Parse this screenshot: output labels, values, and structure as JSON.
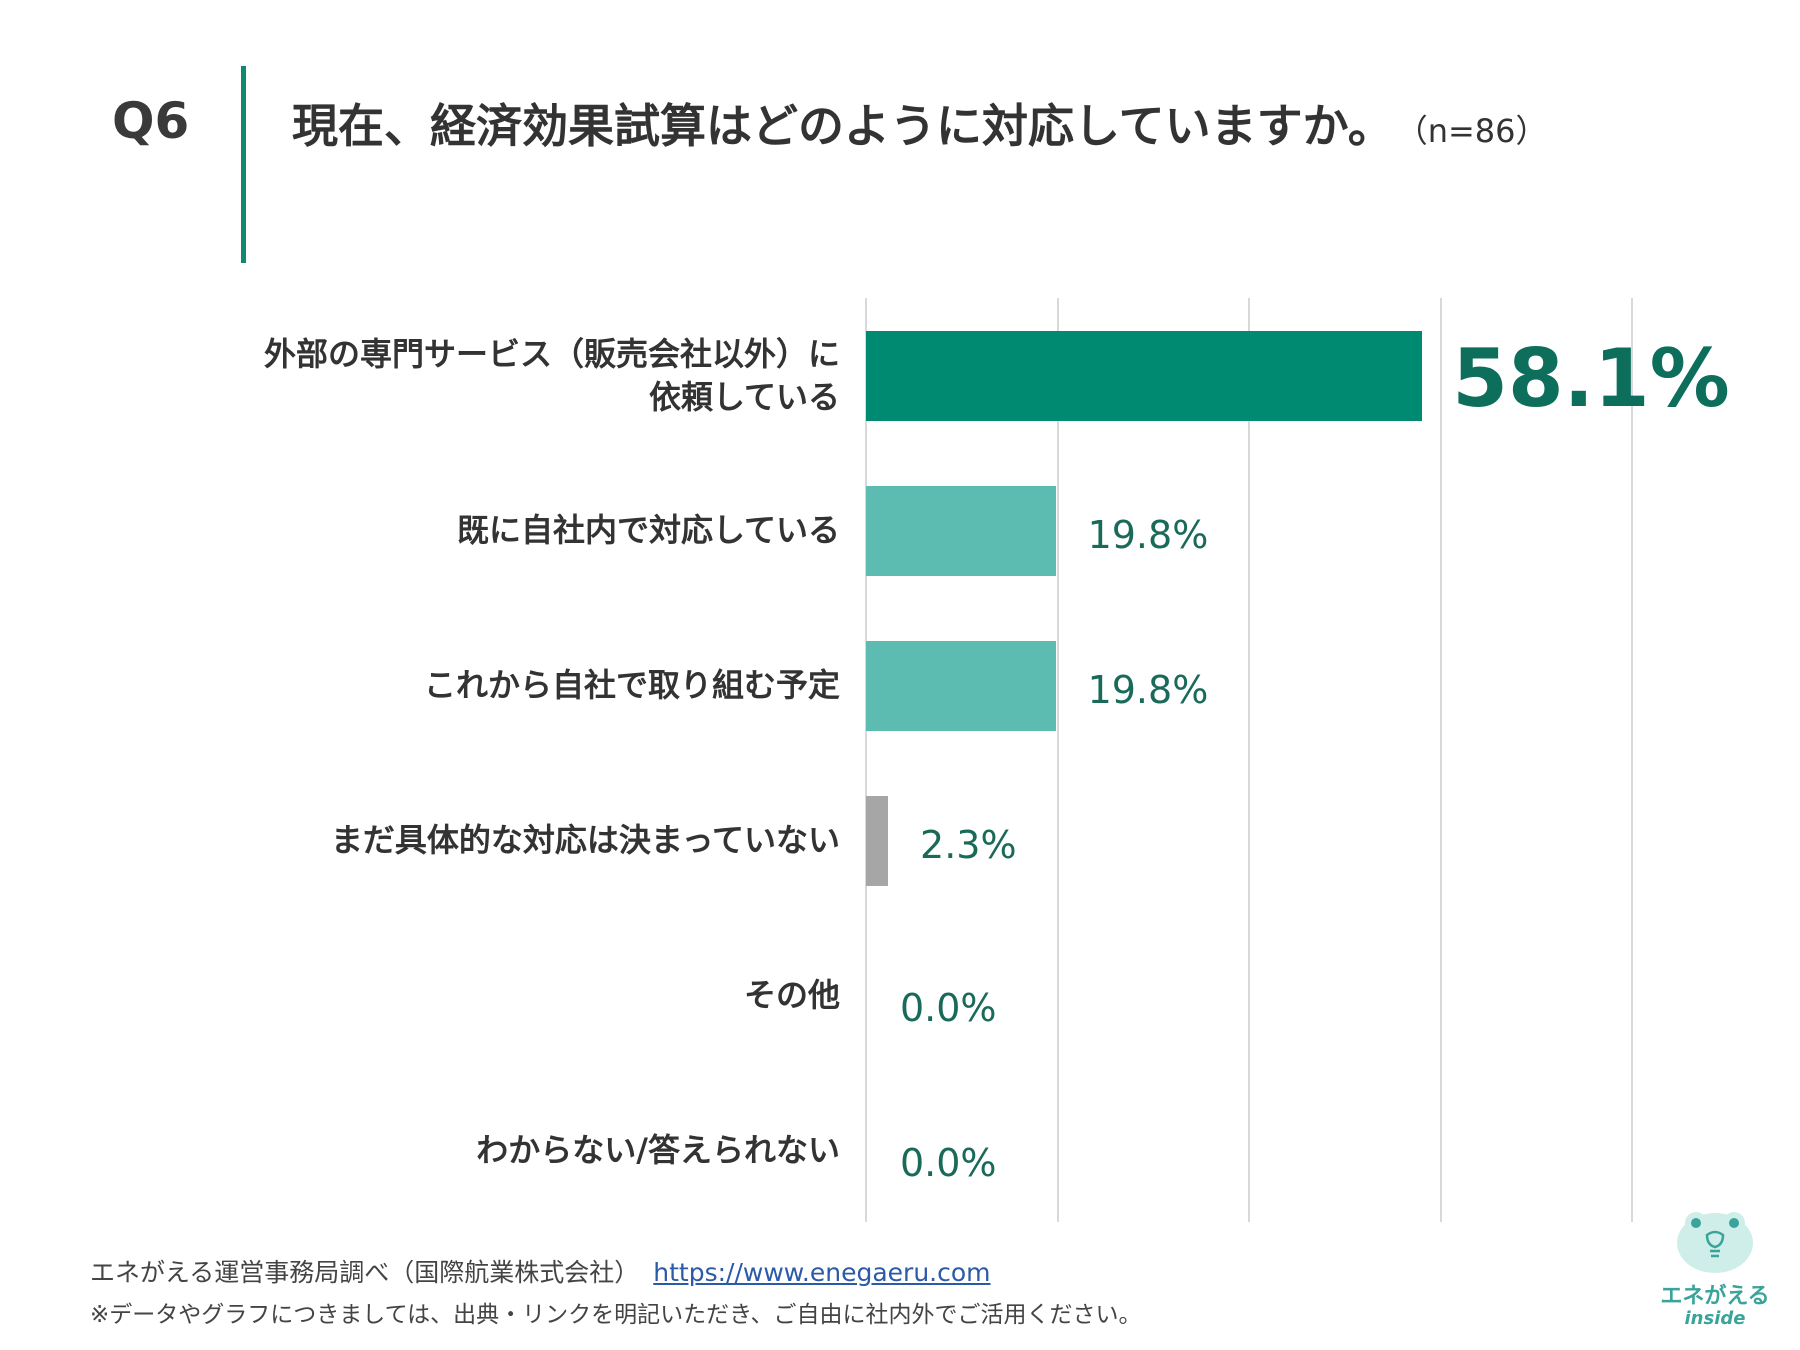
{
  "header": {
    "question_number": "Q6",
    "title": "現在、経済効果試算はどのように対応していますか。",
    "sample_size": "（n=86）"
  },
  "chart_data": {
    "type": "bar",
    "orientation": "horizontal",
    "categories": [
      "外部の専門サービス（販売会社以外）に依頼している",
      "既に自社内で対応している",
      "これから自社で取り組む予定",
      "まだ具体的な対応は決まっていない",
      "その他",
      "わからない/答えられない"
    ],
    "category_lines": [
      [
        "外部の専門サービス（販売会社以外）に",
        "依頼している"
      ],
      [
        "既に自社内で対応している"
      ],
      [
        "これから自社で取り組む予定"
      ],
      [
        "まだ具体的な対応は決まっていない"
      ],
      [
        "その他"
      ],
      [
        "わからない/答えられない"
      ]
    ],
    "values": [
      58.1,
      19.8,
      19.8,
      2.3,
      0.0,
      0.0
    ],
    "value_labels": [
      "58.1%",
      "19.8%",
      "19.8%",
      "2.3%",
      "0.0%",
      "0.0%"
    ],
    "bar_colors": [
      "#008a72",
      "#5dbcb1",
      "#5dbcb1",
      "#a6a6a6",
      "#a6a6a6",
      "#a6a6a6"
    ],
    "xlim": [
      0,
      80
    ],
    "gridlines": [
      0,
      20,
      40,
      60,
      80
    ],
    "grid": true,
    "legend": "none"
  },
  "footer": {
    "source": "エネがえる運営事務局調べ（国際航業株式会社）",
    "url": "https://www.enegaeru.com",
    "note": "※データやグラフにつきましては、出典・リンクを明記いただき、ご自由に社内外でご活用ください。"
  },
  "logo": {
    "name": "エネがえる",
    "sub": "inside",
    "primary_color": "#3aa39a"
  }
}
